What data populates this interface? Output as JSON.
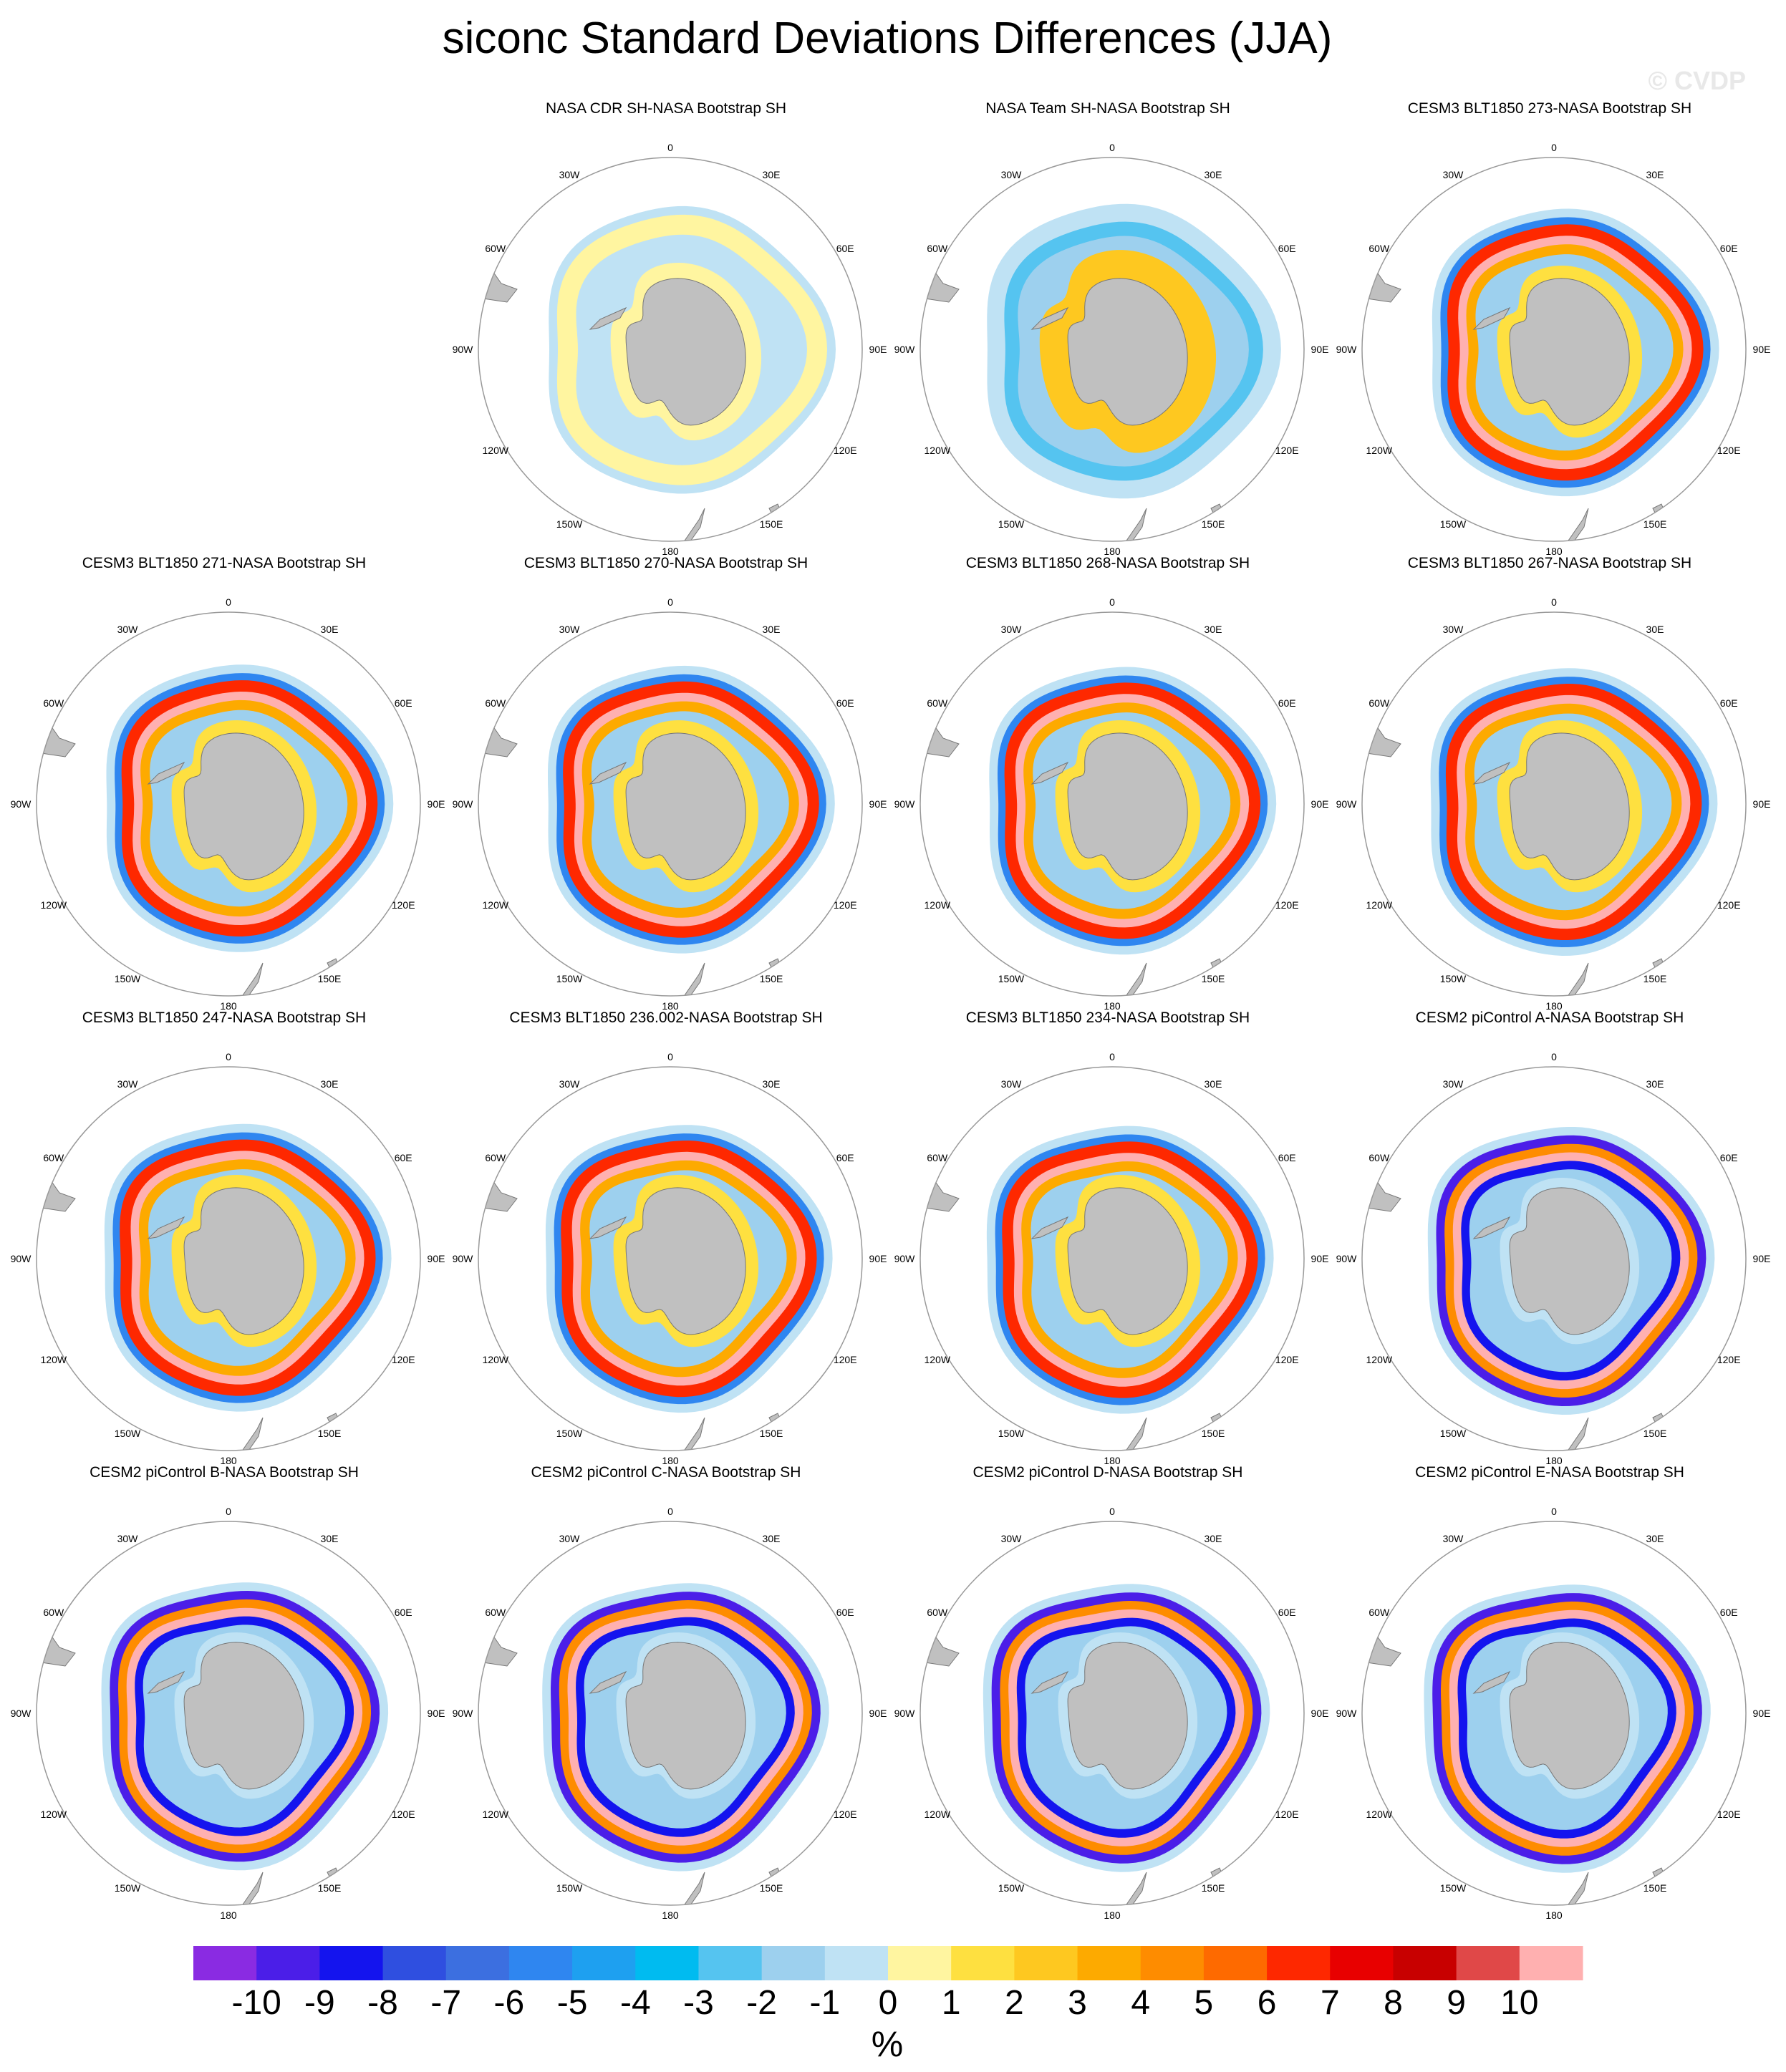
{
  "figure": {
    "title": "siconc Standard Deviations Differences (JJA)",
    "watermark": "© CVDP"
  },
  "map_labels": {
    "lon_0": "0",
    "lon_30e": "30E",
    "lon_60e": "60E",
    "lon_90e": "90E",
    "lon_120e": "120E",
    "lon_150e": "150E",
    "lon_180": "180",
    "lon_150w": "150W",
    "lon_120w": "120W",
    "lon_90w": "90W",
    "lon_60w": "60W",
    "lon_30w": "30W"
  },
  "panels": [
    {
      "title": "NASA CDR SH-NASA Bootstrap SH",
      "pattern": "cdr"
    },
    {
      "title": "NASA Team SH-NASA Bootstrap SH",
      "pattern": "team"
    },
    {
      "title": "CESM3 BLT1850 273-NASA Bootstrap SH",
      "pattern": "cesm3"
    },
    {
      "title": "CESM3 BLT1850 271-NASA Bootstrap SH",
      "pattern": "cesm3"
    },
    {
      "title": "CESM3 BLT1850 270-NASA Bootstrap SH",
      "pattern": "cesm3"
    },
    {
      "title": "CESM3 BLT1850 268-NASA Bootstrap SH",
      "pattern": "cesm3"
    },
    {
      "title": "CESM3 BLT1850 267-NASA Bootstrap SH",
      "pattern": "cesm3"
    },
    {
      "title": "CESM3 BLT1850 247-NASA Bootstrap SH",
      "pattern": "cesm3"
    },
    {
      "title": "CESM3 BLT1850 236.002-NASA Bootstrap SH",
      "pattern": "cesm3"
    },
    {
      "title": "CESM3 BLT1850 234-NASA Bootstrap SH",
      "pattern": "cesm3"
    },
    {
      "title": "CESM2 piControl A-NASA Bootstrap SH",
      "pattern": "cesm2"
    },
    {
      "title": "CESM2 piControl B-NASA Bootstrap SH",
      "pattern": "cesm2"
    },
    {
      "title": "CESM2 piControl C-NASA Bootstrap SH",
      "pattern": "cesm2"
    },
    {
      "title": "CESM2 piControl D-NASA Bootstrap SH",
      "pattern": "cesm2"
    },
    {
      "title": "CESM2 piControl E-NASA Bootstrap SH",
      "pattern": "cesm2"
    }
  ],
  "colorbar": {
    "units": "%",
    "tick_labels": [
      "-10",
      "-9",
      "-8",
      "-7",
      "-6",
      "-5",
      "-4",
      "-3",
      "-2",
      "-1",
      "0",
      "1",
      "2",
      "3",
      "4",
      "5",
      "6",
      "7",
      "8",
      "9",
      "10"
    ],
    "colors": [
      "#8a2be2",
      "#4b1ee8",
      "#1414ee",
      "#2f4fe0",
      "#3c6fe0",
      "#2f86f0",
      "#1ea0f0",
      "#00bbf0",
      "#55c4f0",
      "#9dd0ee",
      "#bfe2f4",
      "#fff5a0",
      "#fee040",
      "#fec820",
      "#fdaa00",
      "#fe8c00",
      "#fe6a00",
      "#fe2800",
      "#e80000",
      "#c80000",
      "#e04848",
      "#ffb0b0"
    ]
  },
  "chart_data": {
    "type": "heatmap",
    "title": "siconc Standard Deviations Differences (JJA)",
    "projection": "south polar stereographic",
    "variable": "siconc",
    "season": "JJA",
    "units": "%",
    "levels": [
      -10,
      -9,
      -8,
      -7,
      -6,
      -5,
      -4,
      -3,
      -2,
      -1,
      0,
      1,
      2,
      3,
      4,
      5,
      6,
      7,
      8,
      9,
      10
    ],
    "panels": [
      "NASA CDR SH-NASA Bootstrap SH",
      "NASA Team SH-NASA Bootstrap SH",
      "CESM3 BLT1850 273-NASA Bootstrap SH",
      "CESM3 BLT1850 271-NASA Bootstrap SH",
      "CESM3 BLT1850 270-NASA Bootstrap SH",
      "CESM3 BLT1850 268-NASA Bootstrap SH",
      "CESM3 BLT1850 267-NASA Bootstrap SH",
      "CESM3 BLT1850 247-NASA Bootstrap SH",
      "CESM3 BLT1850 236.002-NASA Bootstrap SH",
      "CESM3 BLT1850 234-NASA Bootstrap SH",
      "CESM2 piControl A-NASA Bootstrap SH",
      "CESM2 piControl B-NASA Bootstrap SH",
      "CESM2 piControl C-NASA Bootstrap SH",
      "CESM2 piControl D-NASA Bootstrap SH",
      "CESM2 piControl E-NASA Bootstrap SH"
    ]
  }
}
